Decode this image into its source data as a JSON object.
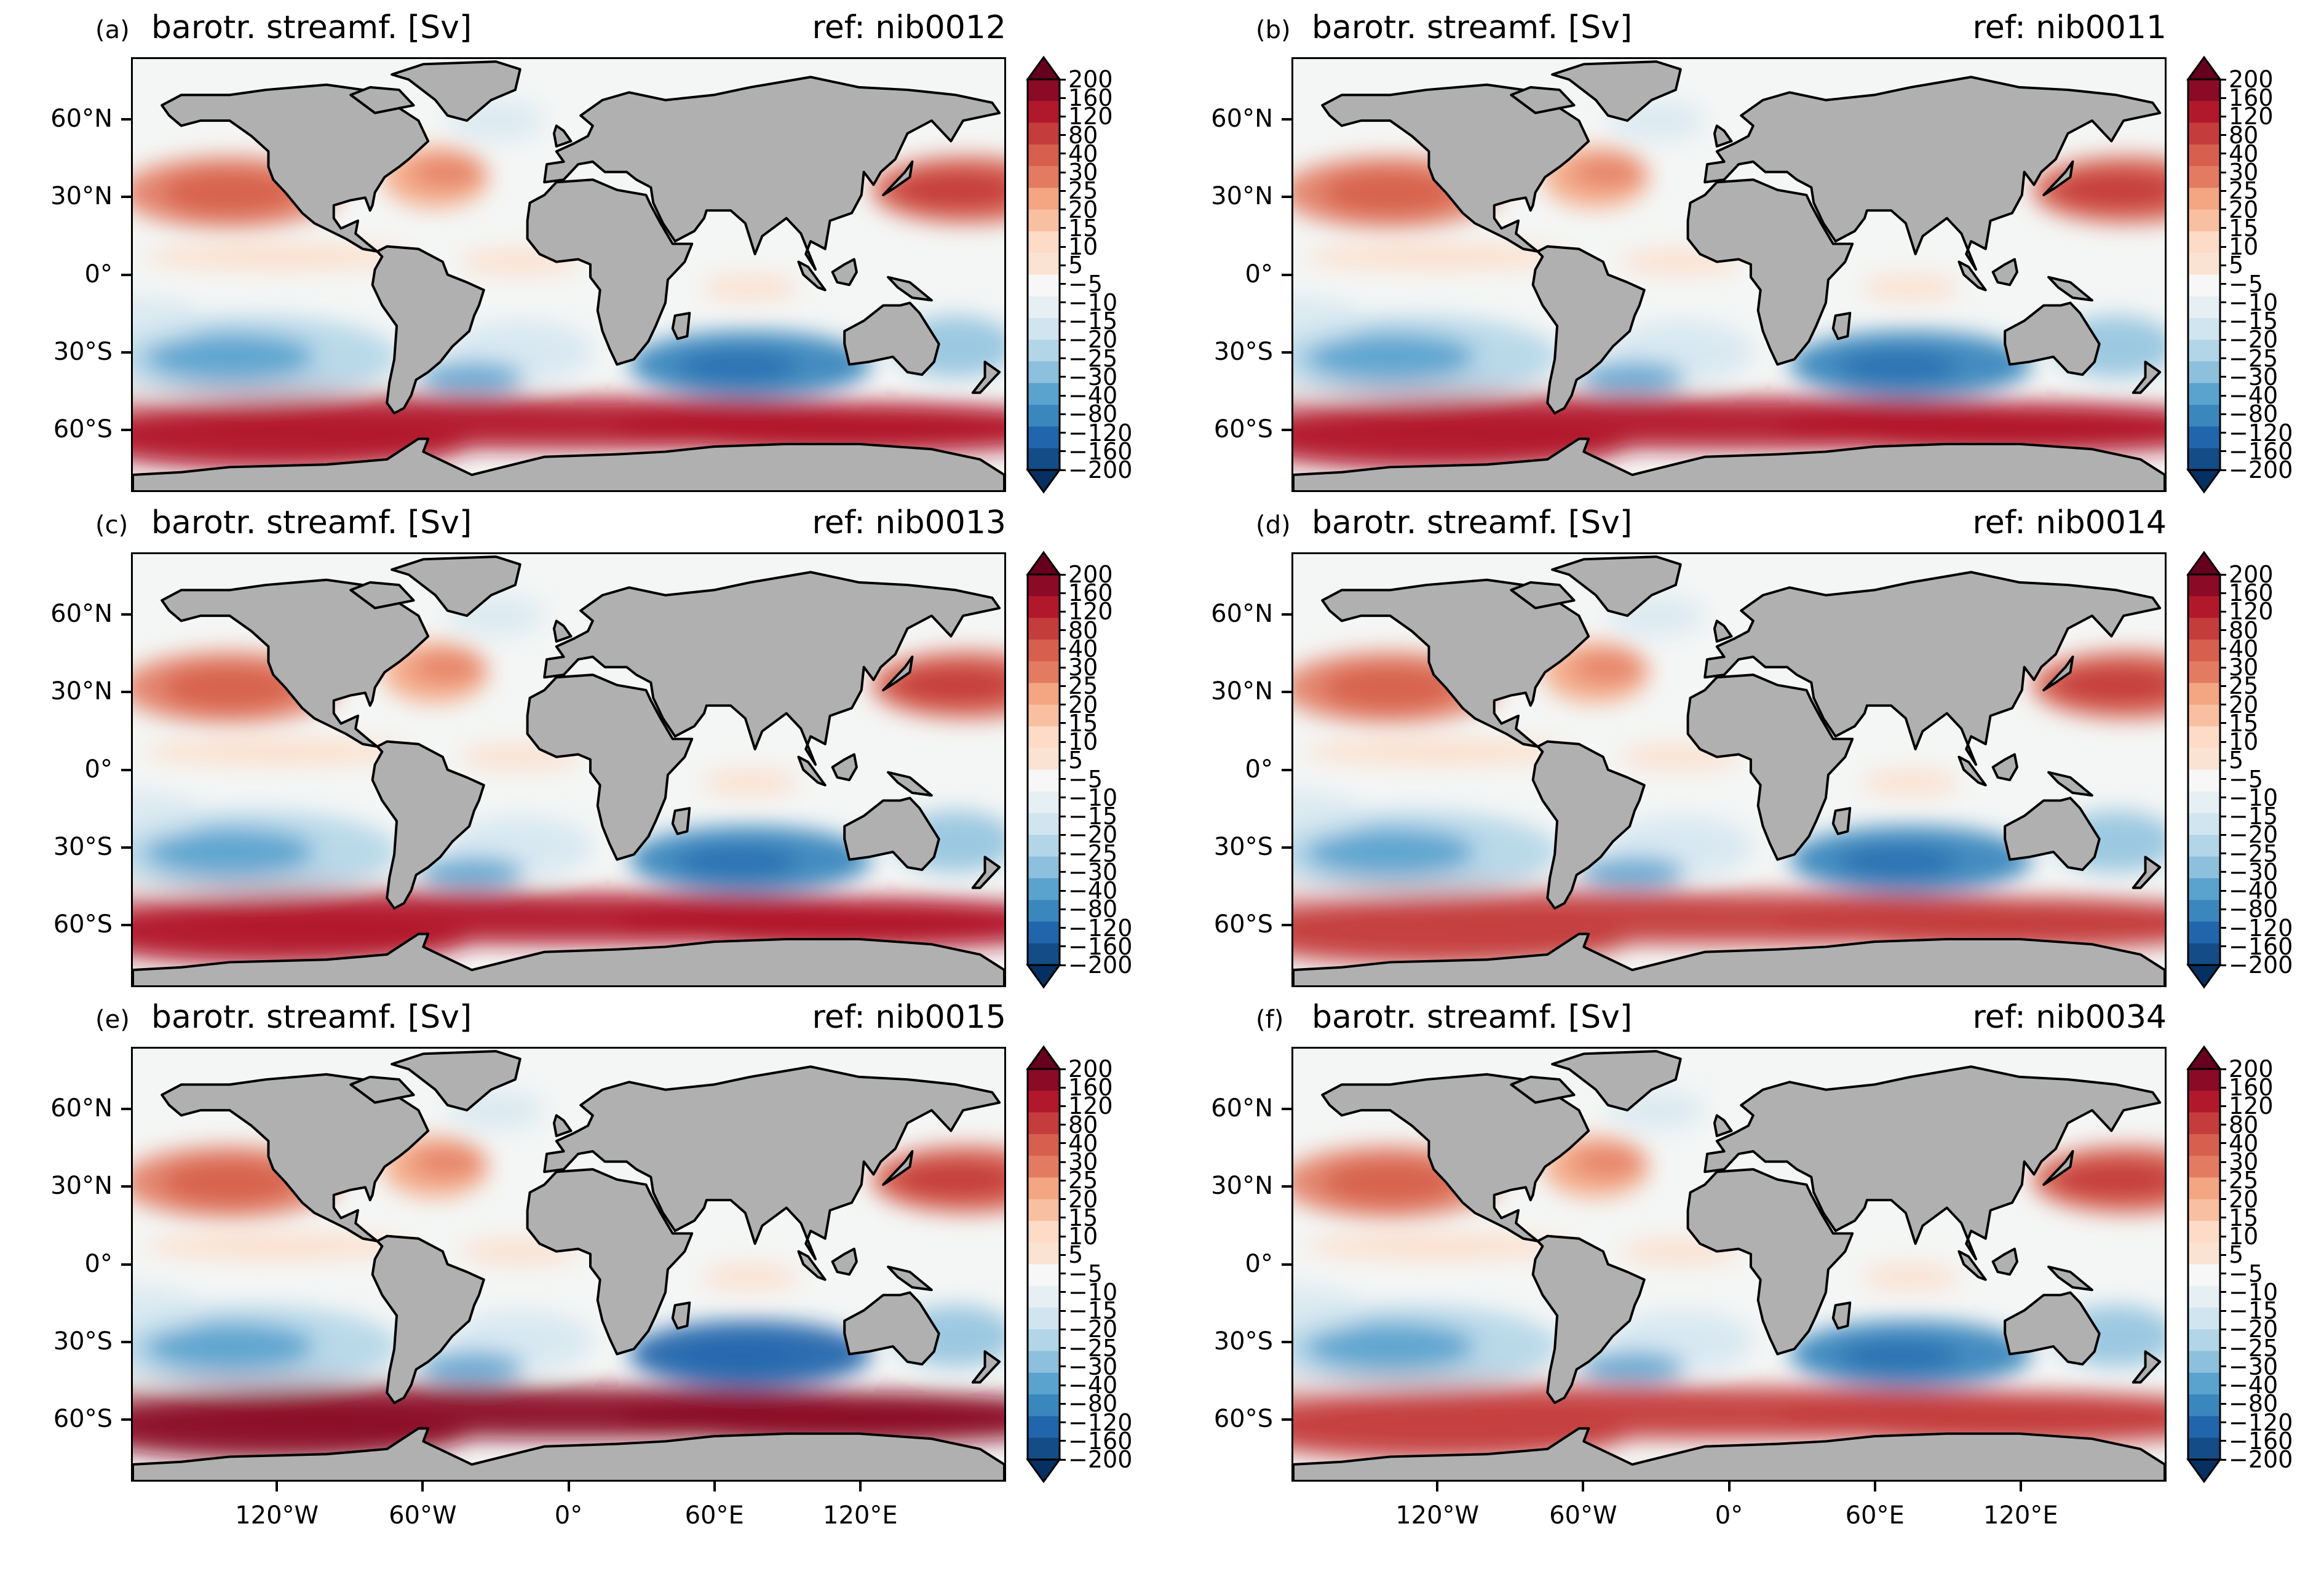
{
  "colors": {
    "land": "#b0b0b0",
    "ocean_neutral": "#f4f6f5",
    "coast": "#000000",
    "colorbar": [
      "#053061",
      "#134c87",
      "#2166ac",
      "#3a87bd",
      "#5ba3cf",
      "#8cc0dd",
      "#b2d5e8",
      "#d1e5f0",
      "#e6eff4",
      "#f7f7f7",
      "#fbe3d4",
      "#fddbc7",
      "#f9bfa1",
      "#f4a582",
      "#e27b62",
      "#d6604d",
      "#c43c3c",
      "#b2182b",
      "#8b0a26",
      "#67001f"
    ]
  },
  "colorbar_ticks": [
    "200",
    "160",
    "120",
    "80",
    "40",
    "30",
    "25",
    "20",
    "15",
    "10",
    "5",
    "−5",
    "−10",
    "−15",
    "−20",
    "−25",
    "−30",
    "−40",
    "−80",
    "−120",
    "−160",
    "−200"
  ],
  "lat_labels": [
    "60°N",
    "30°N",
    "0°",
    "30°S",
    "60°S"
  ],
  "lon_labels": [
    "120°W",
    "60°W",
    "0°",
    "60°E",
    "120°E"
  ],
  "panels": [
    {
      "letter": "(a)",
      "title": "barotr. streamf. [Sv]",
      "ref": "ref: nib0012",
      "acc_color": "#b2182b",
      "south_indian": "#3a87bd"
    },
    {
      "letter": "(b)",
      "title": "barotr. streamf. [Sv]",
      "ref": "ref: nib0011",
      "acc_color": "#b2182b",
      "south_indian": "#3a87bd"
    },
    {
      "letter": "(c)",
      "title": "barotr. streamf. [Sv]",
      "ref": "ref: nib0013",
      "acc_color": "#b2182b",
      "south_indian": "#3a87bd"
    },
    {
      "letter": "(d)",
      "title": "barotr. streamf. [Sv]",
      "ref": "ref: nib0014",
      "acc_color": "#c43c3c",
      "south_indian": "#3a87bd"
    },
    {
      "letter": "(e)",
      "title": "barotr. streamf. [Sv]",
      "ref": "ref: nib0015",
      "acc_color": "#8b0a26",
      "south_indian": "#2166ac"
    },
    {
      "letter": "(f)",
      "title": "barotr. streamf. [Sv]",
      "ref": "ref: nib0034",
      "acc_color": "#c43c3c",
      "south_indian": "#3a87bd"
    }
  ]
}
